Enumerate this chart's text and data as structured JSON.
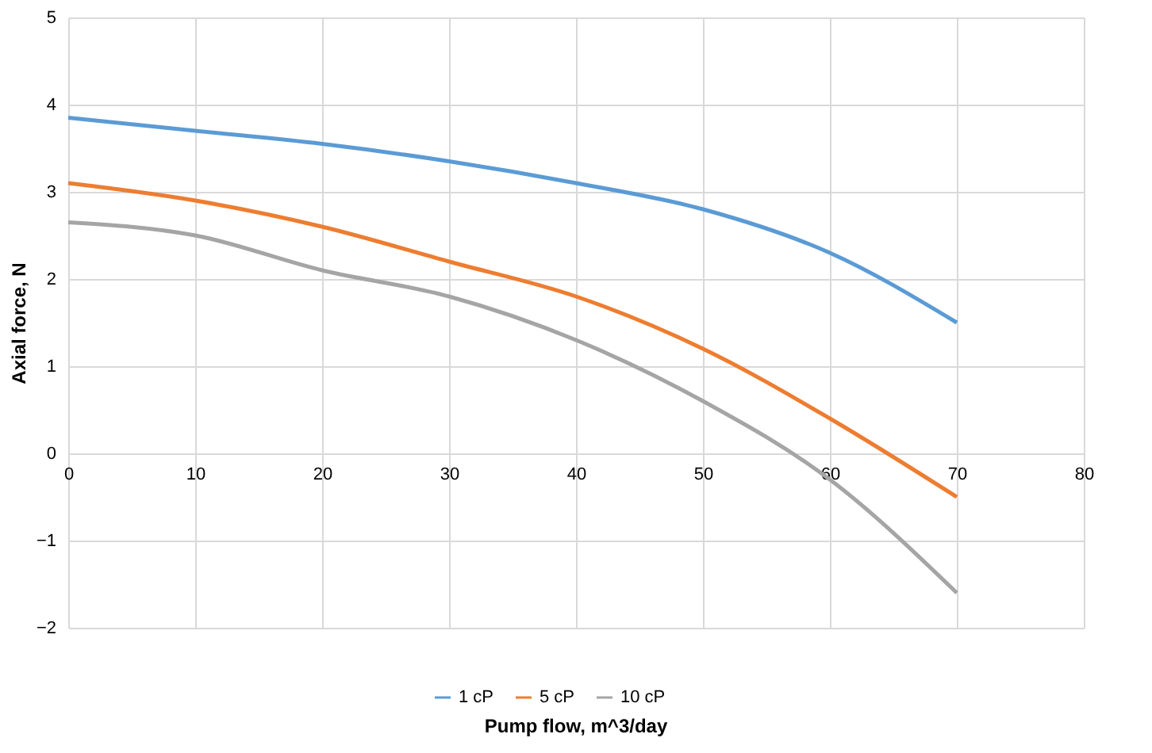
{
  "chart_data": {
    "type": "line",
    "xlabel": "Pump flow, m^3/day",
    "ylabel": "Axial force, N",
    "x": [
      0,
      10,
      20,
      30,
      40,
      50,
      60,
      70
    ],
    "series": [
      {
        "name": "1 cP",
        "color": "#5b9bd5",
        "values": [
          3.85,
          3.7,
          3.55,
          3.35,
          3.1,
          2.8,
          2.3,
          1.5
        ]
      },
      {
        "name": "5 cP",
        "color": "#ed7d31",
        "values": [
          3.1,
          2.9,
          2.6,
          2.2,
          1.8,
          1.2,
          0.4,
          -0.5
        ]
      },
      {
        "name": "10 cP",
        "color": "#a5a5a5",
        "values": [
          2.65,
          2.5,
          2.1,
          1.8,
          1.3,
          0.6,
          -0.3,
          -1.6
        ]
      }
    ],
    "xlim": [
      0,
      80
    ],
    "xticks": [
      0,
      10,
      20,
      30,
      40,
      50,
      60,
      70,
      80
    ],
    "ylim": [
      -2,
      5
    ],
    "yticks": [
      -2,
      -1,
      0,
      1,
      2,
      3,
      4,
      5
    ],
    "grid": true,
    "legend": "bottom",
    "marker": "none",
    "line_style": "solid"
  }
}
